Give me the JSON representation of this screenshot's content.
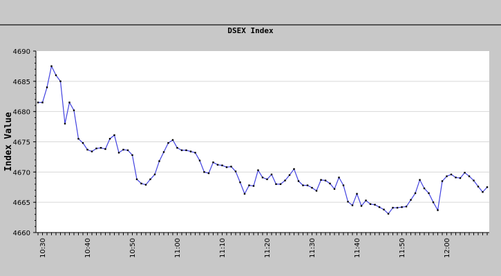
{
  "chart_data": {
    "type": "line",
    "title": "DSEX Index",
    "xlabel": "",
    "ylabel": "Index Value",
    "ylim": [
      4660,
      4690
    ],
    "yticks": [
      4660,
      4665,
      4670,
      4675,
      4680,
      4685,
      4690
    ],
    "xticks": [
      "10:30",
      "10:40",
      "10:50",
      "11:00",
      "11:10",
      "11:20",
      "11:30",
      "11:40",
      "11:50",
      "12:00"
    ],
    "grid": true,
    "line_color": "#4040e0",
    "x": [
      "10:29",
      "10:30",
      "10:31",
      "10:32",
      "10:33",
      "10:34",
      "10:35",
      "10:36",
      "10:37",
      "10:38",
      "10:39",
      "10:40",
      "10:41",
      "10:42",
      "10:43",
      "10:44",
      "10:45",
      "10:46",
      "10:47",
      "10:48",
      "10:49",
      "10:50",
      "10:51",
      "10:52",
      "10:53",
      "10:54",
      "10:55",
      "10:56",
      "10:57",
      "10:58",
      "10:59",
      "11:00",
      "11:01",
      "11:02",
      "11:03",
      "11:04",
      "11:05",
      "11:06",
      "11:07",
      "11:08",
      "11:09",
      "11:10",
      "11:11",
      "11:12",
      "11:13",
      "11:14",
      "11:15",
      "11:16",
      "11:17",
      "11:18",
      "11:19",
      "11:20",
      "11:21",
      "11:22",
      "11:23",
      "11:24",
      "11:25",
      "11:26",
      "11:27",
      "11:28",
      "11:29",
      "11:30",
      "11:31",
      "11:32",
      "11:33",
      "11:34",
      "11:35",
      "11:36",
      "11:37",
      "11:38",
      "11:39",
      "11:40",
      "11:41",
      "11:42",
      "11:43",
      "11:44",
      "11:45",
      "11:46",
      "11:47",
      "11:48",
      "11:49",
      "11:50",
      "11:51",
      "11:52",
      "11:53",
      "11:54",
      "11:55",
      "11:56",
      "11:57",
      "11:58",
      "11:59",
      "12:00",
      "12:01",
      "12:02",
      "12:03",
      "12:04",
      "12:05",
      "12:06",
      "12:07",
      "12:08",
      "12:09"
    ],
    "values": [
      4681.5,
      4681.5,
      4684,
      4687.5,
      4686,
      4685,
      4678,
      4681.5,
      4680.2,
      4675.5,
      4674.8,
      4673.7,
      4673.4,
      4673.9,
      4674,
      4673.8,
      4675.5,
      4676.1,
      4673.2,
      4673.7,
      4673.6,
      4672.8,
      4668.8,
      4668.1,
      4667.9,
      4668.8,
      4669.6,
      4671.8,
      4673.3,
      4674.8,
      4675.3,
      4674,
      4673.6,
      4673.6,
      4673.4,
      4673.2,
      4671.9,
      4670,
      4669.8,
      4671.6,
      4671.2,
      4671.1,
      4670.8,
      4670.9,
      4670.1,
      4668.3,
      4666.4,
      4667.8,
      4667.7,
      4670.3,
      4669.1,
      4668.8,
      4669.6,
      4668.0,
      4668.0,
      4668.6,
      4669.5,
      4670.5,
      4668.5,
      4667.8,
      4667.8,
      4667.4,
      4666.9,
      4668.7,
      4668.6,
      4668.1,
      4667.2,
      4669.1,
      4667.8,
      4665.1,
      4664.5,
      4666.4,
      4664.4,
      4665.3,
      4664.7,
      4664.6,
      4664.2,
      4663.8,
      4663.1,
      4664.1,
      4664.1,
      4664.2,
      4664.3,
      4665.4,
      4666.5,
      4668.7,
      4667.3,
      4666.5,
      4665.0,
      4663.7,
      4668.5,
      4669.3,
      4669.6,
      4669.1,
      4669.0,
      4669.9,
      4669.3,
      4668.6,
      4667.6,
      4666.7,
      4667.5
    ]
  }
}
